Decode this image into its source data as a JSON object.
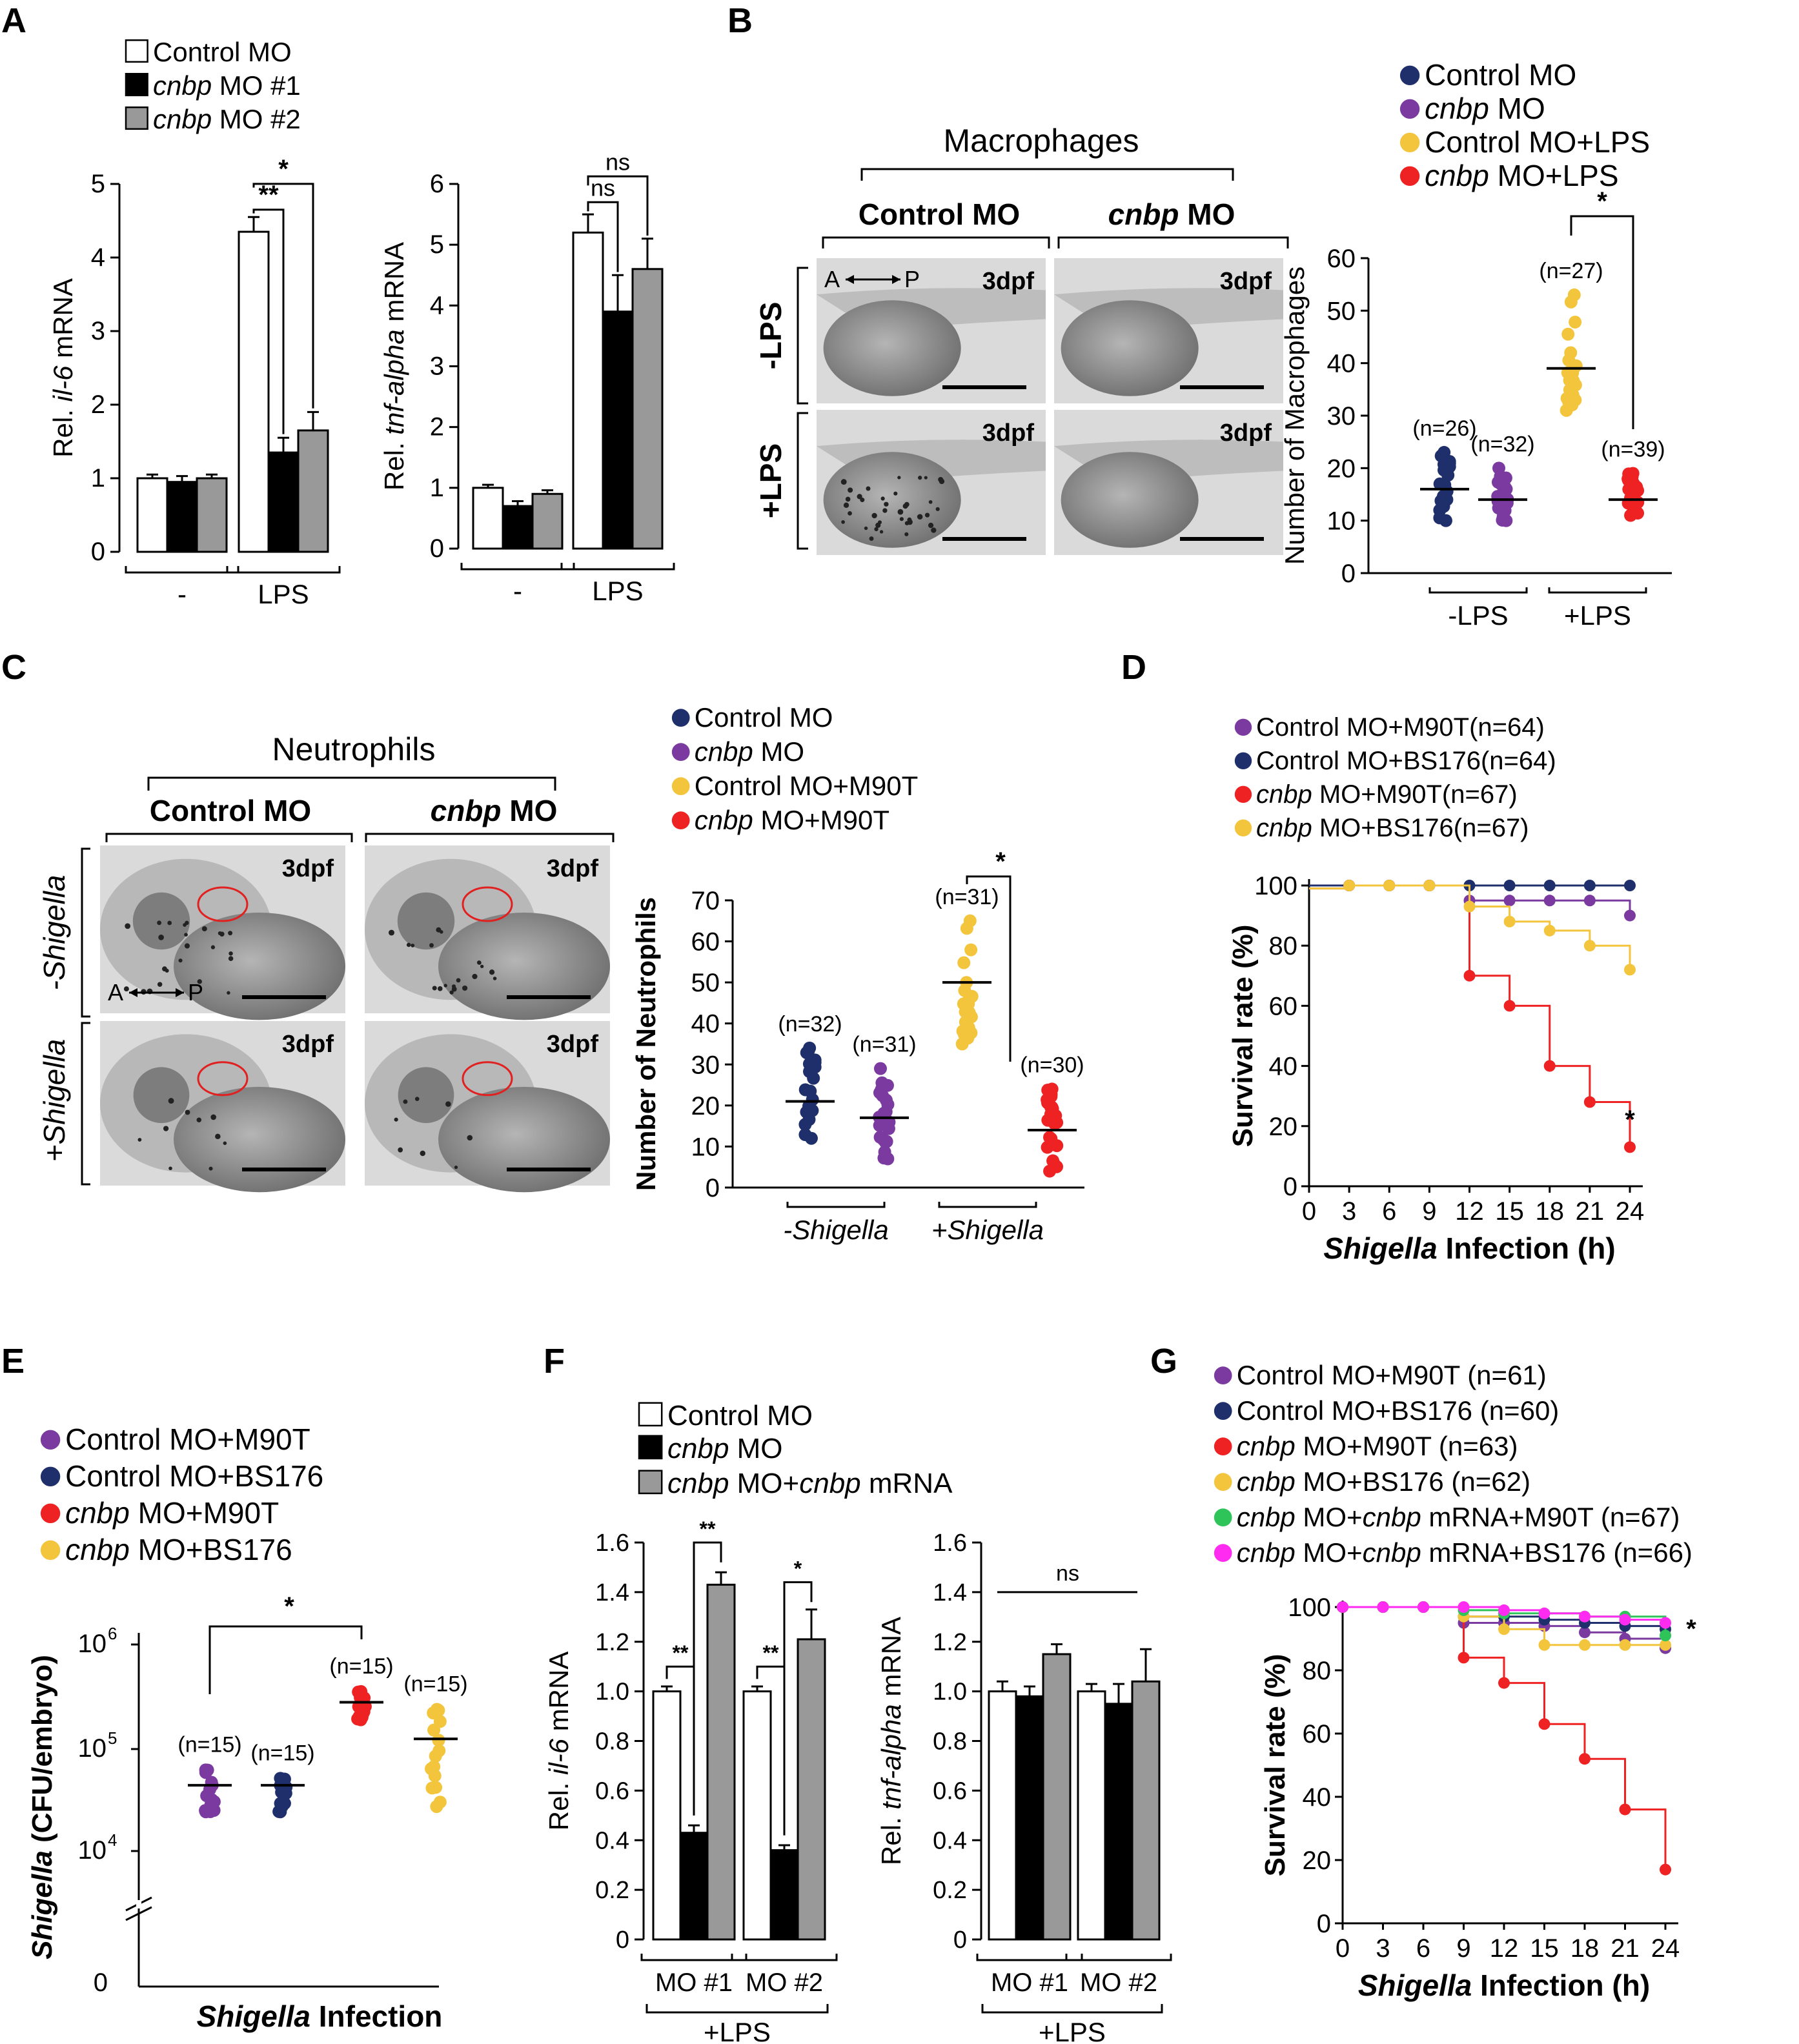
{
  "panels": {
    "A": {
      "letter": "A",
      "legend": [
        {
          "name": "Control MO",
          "italic": ""
        },
        {
          "name": " MO #1",
          "italic": "cnbp"
        },
        {
          "name": " MO #2",
          "italic": "cnbp"
        }
      ],
      "colors": [
        "#ffffff",
        "#000000",
        "#999999"
      ],
      "groups": [
        "-",
        "LPS"
      ],
      "il6": {
        "ylabel_pre": "Rel. ",
        "ylabel_it": "il-6",
        "ylabel_post": " mRNA",
        "ylim": [
          0,
          5
        ],
        "yticks": [
          "0",
          "1",
          "2",
          "3",
          "4",
          "5"
        ],
        "values": [
          [
            1.0,
            0.95,
            1.0
          ],
          [
            4.35,
            1.35,
            1.65
          ]
        ],
        "errors": [
          [
            0.05,
            0.08,
            0.05
          ],
          [
            0.2,
            0.2,
            0.25
          ]
        ],
        "sig": [
          "**",
          "*"
        ]
      },
      "tnf": {
        "ylabel_pre": "Rel. ",
        "ylabel_it": "tnf-alpha",
        "ylabel_post": " mRNA",
        "ylim": [
          0,
          6
        ],
        "yticks": [
          "0",
          "1",
          "2",
          "3",
          "4",
          "5",
          "6"
        ],
        "values": [
          [
            1.0,
            0.7,
            0.9
          ],
          [
            5.2,
            3.9,
            4.6
          ]
        ],
        "errors": [
          [
            0.05,
            0.08,
            0.06
          ],
          [
            0.3,
            0.6,
            0.5
          ]
        ],
        "sig": [
          "ns",
          "ns"
        ]
      }
    },
    "B": {
      "letter": "B",
      "image_title": "Macrophages",
      "col_labels": [
        {
          "text": "Control MO",
          "italic": false
        },
        {
          "text": "cnbp",
          "italic": true,
          "post": " MO"
        }
      ],
      "row_labels": [
        "-LPS",
        "+LPS"
      ],
      "stage_label": "3dpf",
      "axis_label": "A",
      "axis_label2": "P",
      "legend": [
        {
          "name": "Control MO",
          "italic": ""
        },
        {
          "name": " MO",
          "italic": "cnbp"
        },
        {
          "name": "Control MO+LPS",
          "italic": ""
        },
        {
          "name": " MO+LPS",
          "italic": "cnbp"
        }
      ],
      "colors": [
        "#1f2f6b",
        "#7a3aa0",
        "#f2c53d",
        "#ee2222"
      ],
      "ylabel": "Number of Macrophages",
      "ylim": [
        0,
        60
      ],
      "yticks": [
        "0",
        "10",
        "20",
        "30",
        "40",
        "50",
        "60"
      ],
      "xgroups": [
        "-LPS",
        "+LPS"
      ],
      "n_labels": [
        "(n=26)",
        "(n=32)",
        "(n=27)",
        "(n=39)"
      ],
      "means": [
        16,
        14,
        39,
        14
      ],
      "ranges": [
        [
          10,
          23
        ],
        [
          10,
          20
        ],
        [
          31,
          53
        ],
        [
          11,
          19
        ]
      ],
      "sig": "*"
    },
    "C": {
      "letter": "C",
      "image_title": "Neutrophils",
      "col_labels": [
        {
          "text": "Control MO",
          "italic": false
        },
        {
          "text": "cnbp",
          "italic": true,
          "post": " MO"
        }
      ],
      "row_labels": [
        "-Shigella",
        "+Shigella"
      ],
      "stage_label": "3dpf",
      "axis_label": "A",
      "axis_label2": "P",
      "legend": [
        {
          "name": "Control MO",
          "italic": ""
        },
        {
          "name": " MO",
          "italic": "cnbp"
        },
        {
          "name": "Control MO+M90T",
          "italic": ""
        },
        {
          "name": " MO+M90T",
          "italic": "cnbp"
        }
      ],
      "colors": [
        "#1f2f6b",
        "#7a3aa0",
        "#f2c53d",
        "#ee2222"
      ],
      "ylabel": "Number of Neutrophils",
      "ylim": [
        0,
        70
      ],
      "yticks": [
        "0",
        "10",
        "20",
        "30",
        "40",
        "50",
        "60",
        "70"
      ],
      "xgroups": [
        "-Shigella",
        "+Shigella"
      ],
      "n_labels": [
        "(n=32)",
        "(n=31)",
        "(n=31)",
        "(n=30)"
      ],
      "means": [
        21,
        17,
        50,
        14
      ],
      "ranges": [
        [
          12,
          34
        ],
        [
          7,
          29
        ],
        [
          35,
          65
        ],
        [
          4,
          24
        ]
      ],
      "sig": "*"
    },
    "D": {
      "letter": "D",
      "legend": [
        {
          "name": "Control MO+M90T",
          "italic": "",
          "n": "(n=64)"
        },
        {
          "name": "Control MO+BS176",
          "italic": "",
          "n": "(n=64)"
        },
        {
          "name": " MO+M90T",
          "italic": "cnbp",
          "n": "(n=67)"
        },
        {
          "name": " MO+BS176",
          "italic": "cnbp",
          "n": "(n=67)"
        }
      ],
      "colors": [
        "#7a3aa0",
        "#1f2f6b",
        "#ee2222",
        "#f2c53d"
      ],
      "ylabel": "Survival rate (%)",
      "xlabel_it": "Shigella",
      "xlabel_post": " Infection (h)",
      "xticks": [
        "0",
        "3",
        "6",
        "9",
        "12",
        "15",
        "18",
        "21",
        "24"
      ],
      "yticks": [
        "0",
        "20",
        "40",
        "60",
        "80",
        "100"
      ],
      "sig": "*"
    },
    "E": {
      "letter": "E",
      "legend": [
        {
          "name": "Control MO+M90T",
          "italic": ""
        },
        {
          "name": "Control MO+BS176",
          "italic": ""
        },
        {
          "name": " MO+M90T",
          "italic": "cnbp"
        },
        {
          "name": " MO+BS176",
          "italic": "cnbp"
        }
      ],
      "colors": [
        "#7a3aa0",
        "#1f2f6b",
        "#ee2222",
        "#f2c53d"
      ],
      "ylabel_it": "Shigella",
      "ylabel_post": " (CFU/embryo)",
      "xlabel_it": "Shigella",
      "xlabel_post": " Infection",
      "yticks": [
        "0",
        "10",
        "10",
        "10"
      ],
      "yexp": [
        "",
        "4",
        "5",
        "6"
      ],
      "n_labels": [
        "(n=15)",
        "(n=15)",
        "(n=15)",
        "(n=15)"
      ],
      "sig": "*"
    },
    "F": {
      "letter": "F",
      "legend": [
        {
          "name": "Control MO",
          "italic": "",
          "it2": "",
          "post": ""
        },
        {
          "name": "",
          "italic": "cnbp",
          "it2": "",
          "post": " MO"
        },
        {
          "name": "",
          "italic": "cnbp",
          "it2": "cnbp",
          "post": " MO+"
        }
      ],
      "legend3_tail": " mRNA",
      "colors": [
        "#ffffff",
        "#000000",
        "#999999"
      ],
      "groups": [
        "MO #1",
        "MO #2"
      ],
      "bracket_label": "+LPS",
      "yticks": [
        "0",
        "0.2",
        "0.4",
        "0.6",
        "0.8",
        "1.0",
        "1.2",
        "1.4",
        "1.6"
      ],
      "il6": {
        "ylabel_pre": "Rel. ",
        "ylabel_it": "il-6",
        "ylabel_post": " mRNA",
        "values": [
          [
            1.0,
            0.43,
            1.43
          ],
          [
            1.0,
            0.36,
            1.21
          ]
        ],
        "errors": [
          [
            0.02,
            0.03,
            0.05
          ],
          [
            0.02,
            0.02,
            0.12
          ]
        ],
        "sig": [
          "**",
          "**",
          "**",
          "*"
        ]
      },
      "tnf": {
        "ylabel_pre": "Rel. ",
        "ylabel_it": "tnf-alpha",
        "ylabel_post": " mRNA",
        "values": [
          [
            1.0,
            0.98,
            1.15
          ],
          [
            1.0,
            0.95,
            1.04
          ]
        ],
        "errors": [
          [
            0.04,
            0.04,
            0.04
          ],
          [
            0.03,
            0.08,
            0.13
          ]
        ],
        "sig": [
          "ns"
        ]
      }
    },
    "G": {
      "letter": "G",
      "legend": [
        {
          "name": "Control MO+M90T",
          "italic": "",
          "it2": "",
          "post": "",
          "n": " (n=61)"
        },
        {
          "name": "Control MO+BS176",
          "italic": "",
          "it2": "",
          "post": "",
          "n": " (n=60)"
        },
        {
          "name": "",
          "italic": "cnbp",
          "it2": "",
          "post": " MO+M90T",
          "n": " (n=63)"
        },
        {
          "name": "",
          "italic": "cnbp",
          "it2": "",
          "post": " MO+BS176",
          "n": " (n=62)"
        },
        {
          "name": "",
          "italic": "cnbp",
          "it2": "cnbp",
          "post": " MO+",
          "tail": " mRNA+M90T",
          "n": " (n=67)"
        },
        {
          "name": "",
          "italic": "cnbp",
          "it2": "cnbp",
          "post": " MO+",
          "tail": " mRNA+BS176",
          "n": " (n=66)"
        }
      ],
      "colors": [
        "#7a3aa0",
        "#1f2f6b",
        "#ee2222",
        "#f2c53d",
        "#2ec45a",
        "#ff2bf0"
      ],
      "ylabel": "Survival rate (%)",
      "xlabel_it": "Shigella",
      "xlabel_post": " Infection (h)",
      "xticks": [
        "0",
        "3",
        "6",
        "9",
        "12",
        "15",
        "18",
        "21",
        "24"
      ],
      "yticks": [
        "0",
        "20",
        "40",
        "60",
        "80",
        "100"
      ],
      "sig": "*"
    }
  },
  "chart_data": [
    {
      "panel": "A-left",
      "type": "bar",
      "categories": [
        "-",
        "LPS"
      ],
      "ylabel": "Rel. il-6 mRNA",
      "ylim": [
        0,
        5
      ],
      "series": [
        {
          "name": "Control MO",
          "values": [
            1.0,
            4.35
          ]
        },
        {
          "name": "cnbp MO #1",
          "values": [
            0.95,
            1.35
          ]
        },
        {
          "name": "cnbp MO #2",
          "values": [
            1.0,
            1.65
          ]
        }
      ]
    },
    {
      "panel": "A-right",
      "type": "bar",
      "categories": [
        "-",
        "LPS"
      ],
      "ylabel": "Rel. tnf-alpha mRNA",
      "ylim": [
        0,
        6
      ],
      "series": [
        {
          "name": "Control MO",
          "values": [
            1.0,
            5.2
          ]
        },
        {
          "name": "cnbp MO #1",
          "values": [
            0.7,
            3.9
          ]
        },
        {
          "name": "cnbp MO #2",
          "values": [
            0.9,
            4.6
          ]
        }
      ]
    },
    {
      "panel": "B",
      "type": "scatter",
      "categories": [
        "-LPS",
        "+LPS"
      ],
      "ylabel": "Number of Macrophages",
      "ylim": [
        0,
        60
      ],
      "series": [
        {
          "name": "Control MO",
          "n": 26,
          "mean": 16
        },
        {
          "name": "cnbp MO",
          "n": 32,
          "mean": 14
        },
        {
          "name": "Control MO+LPS",
          "n": 27,
          "mean": 39
        },
        {
          "name": "cnbp MO+LPS",
          "n": 39,
          "mean": 14
        }
      ]
    },
    {
      "panel": "C",
      "type": "scatter",
      "categories": [
        "-Shigella",
        "+Shigella"
      ],
      "ylabel": "Number of Neutrophils",
      "ylim": [
        0,
        70
      ],
      "series": [
        {
          "name": "Control MO",
          "n": 32,
          "mean": 21
        },
        {
          "name": "cnbp MO",
          "n": 31,
          "mean": 17
        },
        {
          "name": "Control MO+M90T",
          "n": 31,
          "mean": 50
        },
        {
          "name": "cnbp MO+M90T",
          "n": 30,
          "mean": 14
        }
      ]
    },
    {
      "panel": "D",
      "type": "line",
      "xlabel": "Shigella Infection (h)",
      "ylabel": "Survival rate (%)",
      "x": [
        0,
        3,
        6,
        9,
        12,
        15,
        18,
        21,
        24
      ],
      "ylim": [
        0,
        100
      ],
      "series": [
        {
          "name": "Control MO+M90T (n=64)",
          "values": [
            100,
            100,
            100,
            100,
            95,
            95,
            95,
            95,
            90
          ]
        },
        {
          "name": "Control MO+BS176 (n=64)",
          "values": [
            100,
            100,
            100,
            100,
            100,
            100,
            100,
            100,
            100
          ]
        },
        {
          "name": "cnbp MO+M90T (n=67)",
          "values": [
            99,
            100,
            100,
            100,
            70,
            60,
            40,
            28,
            13
          ]
        },
        {
          "name": "cnbp MO+BS176 (n=67)",
          "values": [
            99,
            100,
            100,
            100,
            93,
            88,
            85,
            80,
            72
          ]
        }
      ]
    },
    {
      "panel": "E",
      "type": "scatter",
      "ylabel": "Shigella (CFU/embryo)",
      "yscale": "log",
      "series": [
        {
          "name": "Control MO+M90T",
          "n": 15,
          "mean": 45000
        },
        {
          "name": "Control MO+BS176",
          "n": 15,
          "mean": 45000
        },
        {
          "name": "cnbp MO+M90T",
          "n": 15,
          "mean": 280000
        },
        {
          "name": "cnbp MO+BS176",
          "n": 15,
          "mean": 125000
        }
      ]
    },
    {
      "panel": "F-left",
      "type": "bar",
      "categories": [
        "MO #1",
        "MO #2"
      ],
      "ylabel": "Rel. il-6 mRNA",
      "ylim": [
        0,
        1.6
      ],
      "series": [
        {
          "name": "Control MO",
          "values": [
            1.0,
            1.0
          ]
        },
        {
          "name": "cnbp MO",
          "values": [
            0.43,
            0.36
          ]
        },
        {
          "name": "cnbp MO+cnbp mRNA",
          "values": [
            1.43,
            1.21
          ]
        }
      ]
    },
    {
      "panel": "F-right",
      "type": "bar",
      "categories": [
        "MO #1",
        "MO #2"
      ],
      "ylabel": "Rel. tnf-alpha mRNA",
      "ylim": [
        0,
        1.6
      ],
      "series": [
        {
          "name": "Control MO",
          "values": [
            1.0,
            1.0
          ]
        },
        {
          "name": "cnbp MO",
          "values": [
            0.98,
            0.95
          ]
        },
        {
          "name": "cnbp MO+cnbp mRNA",
          "values": [
            1.15,
            1.04
          ]
        }
      ]
    },
    {
      "panel": "G",
      "type": "line",
      "xlabel": "Shigella Infection (h)",
      "ylabel": "Survival rate (%)",
      "x": [
        0,
        3,
        6,
        9,
        12,
        15,
        18,
        21,
        24
      ],
      "ylim": [
        0,
        100
      ],
      "series": [
        {
          "name": "Control MO+M90T (n=61)",
          "values": [
            100,
            100,
            100,
            95,
            95,
            94,
            92,
            90,
            87
          ]
        },
        {
          "name": "Control MO+BS176 (n=60)",
          "values": [
            100,
            100,
            100,
            97,
            97,
            96,
            95,
            94,
            93
          ]
        },
        {
          "name": "cnbp MO+M90T (n=63)",
          "values": [
            100,
            100,
            100,
            84,
            76,
            63,
            52,
            36,
            17
          ]
        },
        {
          "name": "cnbp MO+BS176 (n=62)",
          "values": [
            100,
            100,
            100,
            97,
            93,
            88,
            88,
            88,
            88
          ]
        },
        {
          "name": "cnbp MO+cnbp mRNA+M90T (n=67)",
          "values": [
            100,
            100,
            100,
            99,
            98,
            98,
            97,
            97,
            91
          ]
        },
        {
          "name": "cnbp MO+cnbp mRNA+BS176 (n=66)",
          "values": [
            100,
            100,
            100,
            100,
            99,
            98,
            97,
            96,
            95
          ]
        }
      ]
    }
  ]
}
